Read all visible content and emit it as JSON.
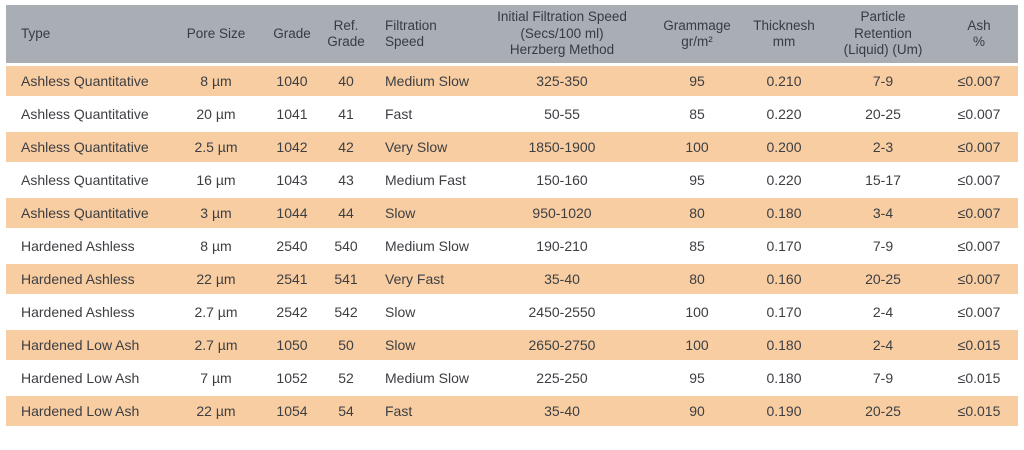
{
  "colors": {
    "header_bg": "#a9aeb5",
    "row_alt_bg": "#f8cda2",
    "row_bg": "#ffffff",
    "text": "#3c3e42"
  },
  "table": {
    "columns": [
      {
        "key": "type",
        "label": "Type",
        "align": "left"
      },
      {
        "key": "pore_size",
        "label": "Pore Size",
        "align": "center"
      },
      {
        "key": "grade",
        "label": "Grade",
        "align": "center"
      },
      {
        "key": "ref_grade",
        "label": "Ref.\nGrade",
        "align": "center"
      },
      {
        "key": "filtration_speed",
        "label": "Filtration\nSpeed",
        "align": "left"
      },
      {
        "key": "initial_speed",
        "label": "Initial Filtration Speed\n(Secs/100 ml)\nHerzberg Method",
        "align": "center"
      },
      {
        "key": "grammage",
        "label": "Grammage\ngr/m²",
        "align": "center"
      },
      {
        "key": "thickness",
        "label": "Thicknesh\nmm",
        "align": "center"
      },
      {
        "key": "particle_retention",
        "label": "Particle\nRetention\n(Liquid) (Um)",
        "align": "center"
      },
      {
        "key": "ash",
        "label": "Ash\n%",
        "align": "center"
      }
    ],
    "rows": [
      {
        "type": "Ashless Quantitative",
        "pore_size": "8 µm",
        "grade": "1040",
        "ref_grade": "40",
        "filtration_speed": "Medium Slow",
        "initial_speed": "325-350",
        "grammage": "95",
        "thickness": "0.210",
        "particle_retention": "7-9",
        "ash": "≤0.007"
      },
      {
        "type": "Ashless Quantitative",
        "pore_size": "20 µm",
        "grade": "1041",
        "ref_grade": "41",
        "filtration_speed": "Fast",
        "initial_speed": "50-55",
        "grammage": "85",
        "thickness": "0.220",
        "particle_retention": "20-25",
        "ash": "≤0.007"
      },
      {
        "type": "Ashless Quantitative",
        "pore_size": "2.5 µm",
        "grade": "1042",
        "ref_grade": "42",
        "filtration_speed": "Very Slow",
        "initial_speed": "1850-1900",
        "grammage": "100",
        "thickness": "0.200",
        "particle_retention": "2-3",
        "ash": "≤0.007"
      },
      {
        "type": "Ashless Quantitative",
        "pore_size": "16 µm",
        "grade": "1043",
        "ref_grade": "43",
        "filtration_speed": "Medium Fast",
        "initial_speed": "150-160",
        "grammage": "95",
        "thickness": "0.220",
        "particle_retention": "15-17",
        "ash": "≤0.007"
      },
      {
        "type": "Ashless Quantitative",
        "pore_size": "3 µm",
        "grade": "1044",
        "ref_grade": "44",
        "filtration_speed": "Slow",
        "initial_speed": "950-1020",
        "grammage": "80",
        "thickness": "0.180",
        "particle_retention": "3-4",
        "ash": "≤0.007"
      },
      {
        "type": "Hardened Ashless",
        "pore_size": "8 µm",
        "grade": "2540",
        "ref_grade": "540",
        "filtration_speed": "Medium Slow",
        "initial_speed": "190-210",
        "grammage": "85",
        "thickness": "0.170",
        "particle_retention": "7-9",
        "ash": "≤0.007"
      },
      {
        "type": "Hardened Ashless",
        "pore_size": "22 µm",
        "grade": "2541",
        "ref_grade": "541",
        "filtration_speed": "Very Fast",
        "initial_speed": "35-40",
        "grammage": "80",
        "thickness": "0.160",
        "particle_retention": "20-25",
        "ash": "≤0.007"
      },
      {
        "type": "Hardened Ashless",
        "pore_size": "2.7 µm",
        "grade": "2542",
        "ref_grade": "542",
        "filtration_speed": "Slow",
        "initial_speed": "2450-2550",
        "grammage": "100",
        "thickness": "0.170",
        "particle_retention": "2-4",
        "ash": "≤0.007"
      },
      {
        "type": "Hardened Low Ash",
        "pore_size": "2.7 µm",
        "grade": "1050",
        "ref_grade": "50",
        "filtration_speed": "Slow",
        "initial_speed": "2650-2750",
        "grammage": "100",
        "thickness": "0.180",
        "particle_retention": "2-4",
        "ash": "≤0.015"
      },
      {
        "type": "Hardened Low Ash",
        "pore_size": "7 µm",
        "grade": "1052",
        "ref_grade": "52",
        "filtration_speed": "Medium Slow",
        "initial_speed": "225-250",
        "grammage": "95",
        "thickness": "0.180",
        "particle_retention": "7-9",
        "ash": "≤0.015"
      },
      {
        "type": "Hardened Low Ash",
        "pore_size": "22 µm",
        "grade": "1054",
        "ref_grade": "54",
        "filtration_speed": "Fast",
        "initial_speed": "35-40",
        "grammage": "90",
        "thickness": "0.190",
        "particle_retention": "20-25",
        "ash": "≤0.015"
      }
    ]
  }
}
